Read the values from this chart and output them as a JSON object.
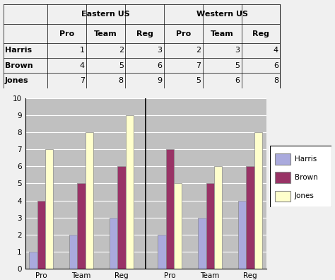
{
  "table": {
    "row_header_col": [
      "",
      "Harris",
      "Brown",
      "Jones"
    ],
    "col_header1": [
      "Eastern US",
      "Western US"
    ],
    "col_header2": [
      "Pro",
      "Team",
      "Reg",
      "Pro",
      "Team",
      "Reg"
    ],
    "data": [
      [
        1,
        2,
        3,
        2,
        3,
        4
      ],
      [
        4,
        5,
        6,
        7,
        5,
        6
      ],
      [
        7,
        8,
        9,
        5,
        6,
        8
      ]
    ]
  },
  "chart": {
    "series_names": [
      "Harris",
      "Brown",
      "Jones"
    ],
    "series_colors": [
      "#AAAADD",
      "#993366",
      "#FFFFCC"
    ],
    "series_edge": [
      "#888899",
      "#662244",
      "#CCCC99"
    ],
    "all_values": [
      [
        1,
        2,
        3,
        2,
        3,
        4
      ],
      [
        4,
        5,
        6,
        7,
        5,
        6
      ],
      [
        7,
        8,
        9,
        5,
        6,
        8
      ]
    ],
    "group_labels": [
      "Pro",
      "Team",
      "Reg",
      "Pro",
      "Team",
      "Reg"
    ],
    "region_labels": [
      "Eastern US",
      "Western US"
    ],
    "ylim": [
      0,
      10
    ],
    "yticks": [
      0,
      1,
      2,
      3,
      4,
      5,
      6,
      7,
      8,
      9,
      10
    ],
    "bar_width": 0.2,
    "group_width": 0.85,
    "bg_color": "#C0C0C0",
    "grid_color": "#FFFFFF"
  }
}
